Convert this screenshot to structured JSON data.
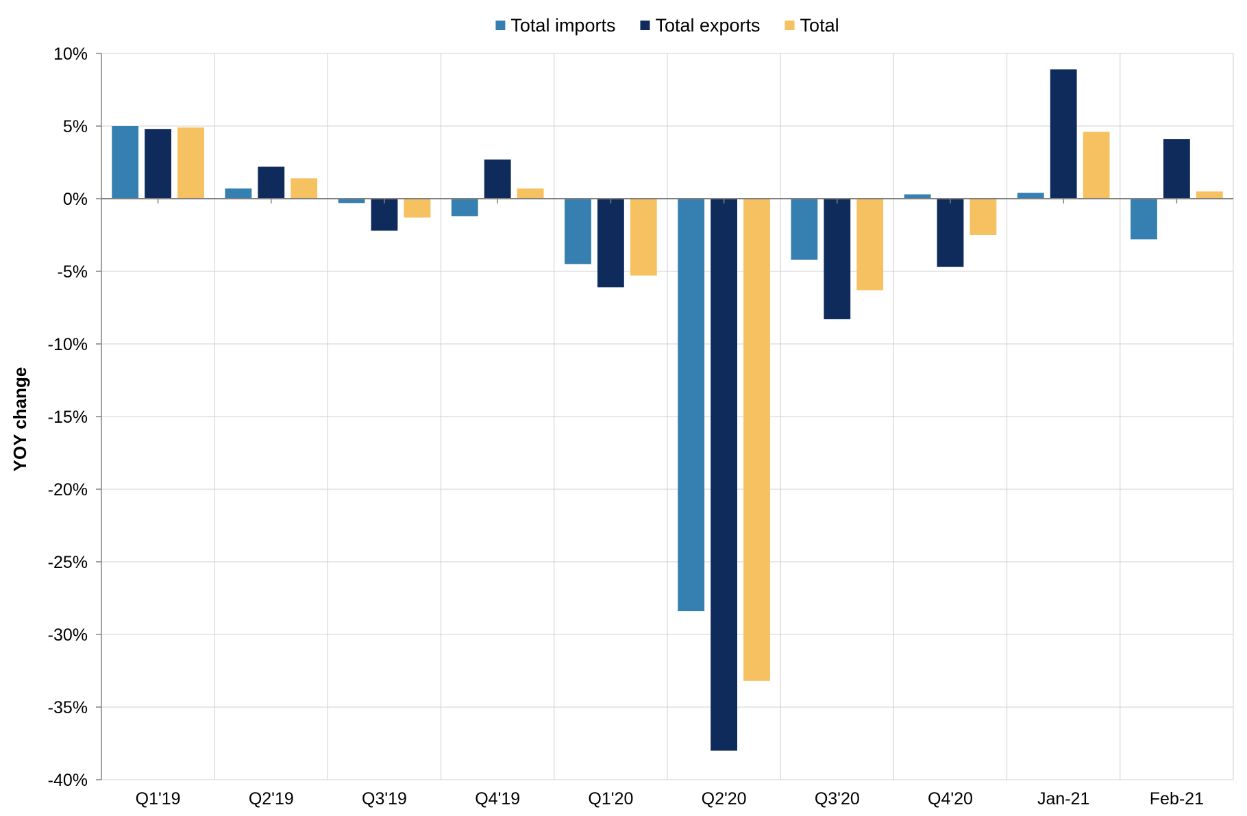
{
  "chart_data": {
    "type": "bar",
    "title": "",
    "xlabel": "",
    "ylabel": "YOY change",
    "ylim": [
      -40,
      10
    ],
    "ytick_step": 5,
    "yticks": [
      "10%",
      "5%",
      "0%",
      "-5%",
      "-10%",
      "-15%",
      "-20%",
      "-25%",
      "-30%",
      "-35%",
      "-40%"
    ],
    "grid": true,
    "legend_position": "top-center",
    "categories": [
      "Q1'19",
      "Q2'19",
      "Q3'19",
      "Q4'19",
      "Q1'20",
      "Q2'20",
      "Q3'20",
      "Q4'20",
      "Jan-21",
      "Feb-21"
    ],
    "series": [
      {
        "name": "Total imports",
        "color": "#3580b0",
        "values": [
          5.0,
          0.7,
          -0.3,
          -1.2,
          -4.5,
          -28.4,
          -4.2,
          0.3,
          0.4,
          -2.8
        ]
      },
      {
        "name": "Total exports",
        "color": "#0f2b5b",
        "values": [
          4.8,
          2.2,
          -2.2,
          2.7,
          -6.1,
          -38.0,
          -8.3,
          -4.7,
          8.9,
          4.1
        ]
      },
      {
        "name": "Total",
        "color": "#f6c160",
        "values": [
          4.9,
          1.4,
          -1.3,
          0.7,
          -5.3,
          -33.2,
          -6.3,
          -2.5,
          4.6,
          0.5
        ]
      }
    ]
  }
}
